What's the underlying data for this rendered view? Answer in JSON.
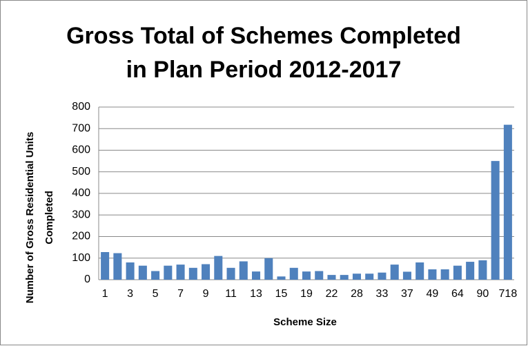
{
  "chart_data": {
    "type": "bar",
    "title": [
      "Gross Total of Schemes Completed",
      "in Plan Period 2012-2017"
    ],
    "x_label": "Scheme Size",
    "y_label": [
      "Number of Gross Residential Units",
      "Completed"
    ],
    "categories": [
      "1",
      null,
      "3",
      null,
      "5",
      null,
      "7",
      null,
      "9",
      null,
      "11",
      null,
      "13",
      null,
      "15",
      null,
      "19",
      null,
      "22",
      null,
      "28",
      null,
      "33",
      null,
      "37",
      null,
      "49",
      null,
      "64",
      null,
      "90",
      null,
      "718"
    ],
    "values": [
      128,
      123,
      80,
      65,
      40,
      65,
      70,
      55,
      72,
      110,
      55,
      85,
      38,
      100,
      15,
      55,
      38,
      40,
      22,
      22,
      28,
      28,
      33,
      70,
      37,
      80,
      48,
      48,
      65,
      83,
      90,
      550,
      718
    ],
    "color": "#4f81bd",
    "ylim": [
      0,
      800
    ],
    "yticks": [
      0,
      100,
      200,
      300,
      400,
      500,
      600,
      700,
      800
    ],
    "grid": true
  }
}
